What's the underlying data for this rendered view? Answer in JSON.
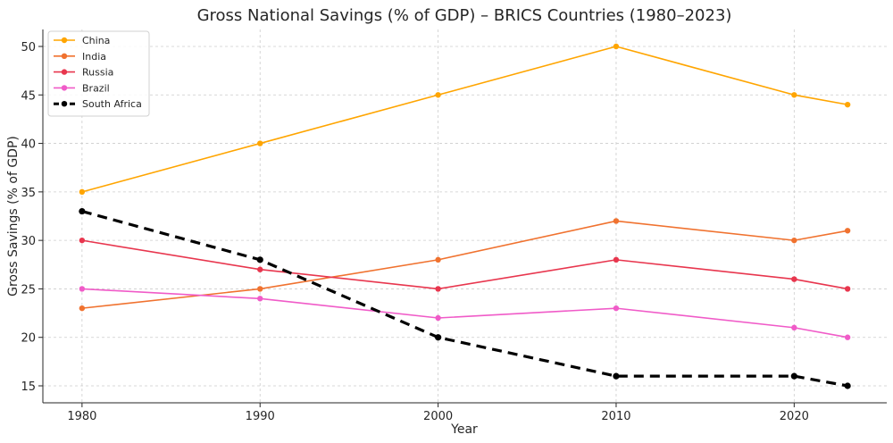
{
  "chart_data": {
    "type": "line",
    "title": "Gross National Savings (% of GDP) – BRICS Countries (1980–2023)",
    "xlabel": "Year",
    "ylabel": "Gross Savings (% of GDP)",
    "x": [
      1980,
      1990,
      2000,
      2010,
      2020,
      2023
    ],
    "xticks": [
      1980,
      1990,
      2000,
      2010,
      2020
    ],
    "yticks": [
      15,
      20,
      25,
      30,
      35,
      40,
      45,
      50
    ],
    "xlim": [
      1977.8,
      2025.2
    ],
    "ylim": [
      13.25,
      51.75
    ],
    "grid": true,
    "legend_position": "top-left",
    "series": [
      {
        "name": "China",
        "color": "#FFA500",
        "dashed": false,
        "values": [
          35,
          40,
          45,
          50,
          45,
          44
        ]
      },
      {
        "name": "India",
        "color": "#F0722F",
        "dashed": false,
        "values": [
          23,
          25,
          28,
          32,
          30,
          31
        ]
      },
      {
        "name": "Russia",
        "color": "#E8364E",
        "dashed": false,
        "values": [
          30,
          27,
          25,
          28,
          26,
          25
        ]
      },
      {
        "name": "Brazil",
        "color": "#F05BC8",
        "dashed": false,
        "values": [
          25,
          24,
          22,
          23,
          21,
          20
        ]
      },
      {
        "name": "South Africa",
        "color": "#000000",
        "dashed": true,
        "values": [
          33,
          28,
          20,
          16,
          16,
          15
        ]
      }
    ]
  }
}
